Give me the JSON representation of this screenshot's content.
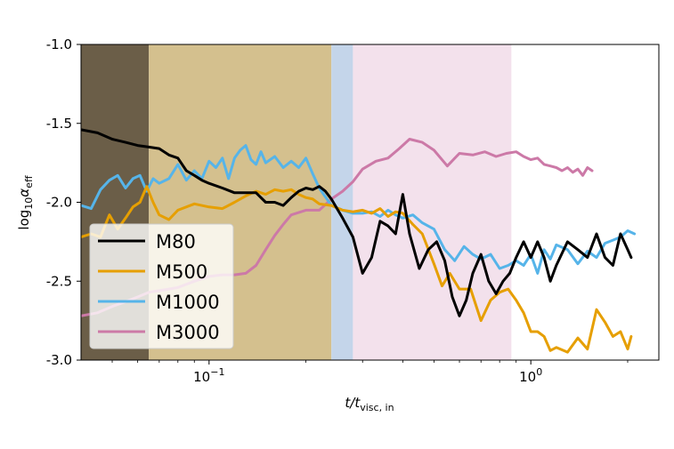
{
  "chart_data": {
    "type": "line",
    "xlabel_main": "t/t",
    "xlabel_sub": "visc, in",
    "ylabel_main": "log",
    "ylabel_sub1": "10",
    "ylabel_alpha": "α",
    "ylabel_sub2": "eff",
    "xscale": "log",
    "xlim": [
      0.04,
      2.5
    ],
    "ylim": [
      -3.0,
      -1.0
    ],
    "yticks": [
      {
        "value": -1.0,
        "label": "-1.0"
      },
      {
        "value": -1.5,
        "label": "-1.5"
      },
      {
        "value": -2.0,
        "label": "-2.0"
      },
      {
        "value": -2.5,
        "label": "-2.5"
      },
      {
        "value": -3.0,
        "label": "-3.0"
      }
    ],
    "xticks": [
      {
        "value": 0.1,
        "base": "10",
        "exp": "−1"
      },
      {
        "value": 1.0,
        "base": "10",
        "exp": "0"
      }
    ],
    "shaded_regions": [
      {
        "from": 0.04,
        "to": 0.065,
        "color": "#6b5e48",
        "opacity": 1.0
      },
      {
        "from": 0.065,
        "to": 0.24,
        "color": "#d4c08e",
        "opacity": 1.0
      },
      {
        "from": 0.24,
        "to": 0.28,
        "color": "#c4d5ea",
        "opacity": 1.0
      },
      {
        "from": 0.28,
        "to": 0.87,
        "color": "#f3e1ec",
        "opacity": 1.0
      }
    ],
    "legend_position": "lower-left",
    "series": [
      {
        "name": "M3000",
        "color": "#cc79a7",
        "x": [
          0.04,
          0.045,
          0.05,
          0.055,
          0.06,
          0.065,
          0.07,
          0.075,
          0.08,
          0.09,
          0.1,
          0.11,
          0.12,
          0.13,
          0.14,
          0.15,
          0.16,
          0.17,
          0.18,
          0.2,
          0.22,
          0.24,
          0.26,
          0.28,
          0.3,
          0.33,
          0.36,
          0.39,
          0.42,
          0.46,
          0.5,
          0.55,
          0.6,
          0.66,
          0.72,
          0.78,
          0.84,
          0.9,
          0.95,
          1.0,
          1.05,
          1.1,
          1.15,
          1.2,
          1.25,
          1.3,
          1.35,
          1.4,
          1.45,
          1.5,
          1.55
        ],
        "y": [
          -2.72,
          -2.7,
          -2.66,
          -2.63,
          -2.6,
          -2.57,
          -2.56,
          -2.55,
          -2.54,
          -2.5,
          -2.47,
          -2.46,
          -2.46,
          -2.45,
          -2.4,
          -2.3,
          -2.21,
          -2.14,
          -2.08,
          -2.05,
          -2.05,
          -1.98,
          -1.93,
          -1.87,
          -1.79,
          -1.74,
          -1.72,
          -1.66,
          -1.6,
          -1.62,
          -1.67,
          -1.77,
          -1.69,
          -1.7,
          -1.68,
          -1.71,
          -1.69,
          -1.68,
          -1.71,
          -1.73,
          -1.72,
          -1.76,
          -1.77,
          -1.78,
          -1.8,
          -1.78,
          -1.81,
          -1.79,
          -1.83,
          -1.78,
          -1.8
        ]
      },
      {
        "name": "M1000",
        "color": "#56b4e9",
        "x": [
          0.04,
          0.043,
          0.046,
          0.049,
          0.052,
          0.055,
          0.058,
          0.061,
          0.064,
          0.067,
          0.07,
          0.075,
          0.08,
          0.085,
          0.09,
          0.095,
          0.1,
          0.105,
          0.11,
          0.115,
          0.12,
          0.125,
          0.13,
          0.135,
          0.14,
          0.145,
          0.15,
          0.16,
          0.17,
          0.18,
          0.19,
          0.2,
          0.21,
          0.22,
          0.24,
          0.26,
          0.28,
          0.3,
          0.32,
          0.34,
          0.36,
          0.38,
          0.4,
          0.43,
          0.46,
          0.5,
          0.54,
          0.58,
          0.62,
          0.66,
          0.7,
          0.75,
          0.8,
          0.85,
          0.9,
          0.95,
          1.0,
          1.05,
          1.1,
          1.15,
          1.2,
          1.3,
          1.4,
          1.5,
          1.6,
          1.7,
          1.8,
          1.9,
          2.0,
          2.1
        ],
        "y": [
          -2.02,
          -2.04,
          -1.92,
          -1.86,
          -1.83,
          -1.91,
          -1.85,
          -1.83,
          -1.93,
          -1.85,
          -1.88,
          -1.85,
          -1.76,
          -1.86,
          -1.8,
          -1.85,
          -1.74,
          -1.78,
          -1.72,
          -1.85,
          -1.72,
          -1.67,
          -1.64,
          -1.73,
          -1.76,
          -1.68,
          -1.75,
          -1.71,
          -1.78,
          -1.74,
          -1.78,
          -1.72,
          -1.82,
          -1.91,
          -2.02,
          -2.05,
          -2.07,
          -2.07,
          -2.06,
          -2.09,
          -2.05,
          -2.08,
          -2.1,
          -2.08,
          -2.13,
          -2.17,
          -2.3,
          -2.37,
          -2.28,
          -2.33,
          -2.36,
          -2.33,
          -2.42,
          -2.4,
          -2.37,
          -2.4,
          -2.33,
          -2.45,
          -2.3,
          -2.36,
          -2.27,
          -2.3,
          -2.39,
          -2.31,
          -2.35,
          -2.26,
          -2.24,
          -2.22,
          -2.18,
          -2.2
        ]
      },
      {
        "name": "M500",
        "color": "#e69f00",
        "x": [
          0.04,
          0.043,
          0.046,
          0.049,
          0.052,
          0.055,
          0.058,
          0.061,
          0.064,
          0.067,
          0.07,
          0.075,
          0.08,
          0.09,
          0.1,
          0.11,
          0.12,
          0.13,
          0.14,
          0.15,
          0.16,
          0.17,
          0.18,
          0.19,
          0.2,
          0.21,
          0.22,
          0.24,
          0.26,
          0.28,
          0.3,
          0.32,
          0.34,
          0.36,
          0.38,
          0.4,
          0.43,
          0.46,
          0.5,
          0.53,
          0.56,
          0.6,
          0.65,
          0.7,
          0.75,
          0.8,
          0.85,
          0.9,
          0.95,
          1.0,
          1.05,
          1.1,
          1.15,
          1.2,
          1.3,
          1.4,
          1.5,
          1.6,
          1.7,
          1.8,
          1.9,
          2.0,
          2.05
        ],
        "y": [
          -2.22,
          -2.2,
          -2.22,
          -2.08,
          -2.17,
          -2.1,
          -2.03,
          -2.0,
          -1.9,
          -2.0,
          -2.08,
          -2.11,
          -2.05,
          -2.01,
          -2.03,
          -2.04,
          -2.0,
          -1.96,
          -1.93,
          -1.95,
          -1.92,
          -1.93,
          -1.92,
          -1.95,
          -1.97,
          -1.98,
          -2.01,
          -2.02,
          -2.05,
          -2.06,
          -2.05,
          -2.07,
          -2.04,
          -2.09,
          -2.06,
          -2.07,
          -2.14,
          -2.2,
          -2.39,
          -2.53,
          -2.45,
          -2.55,
          -2.55,
          -2.75,
          -2.62,
          -2.57,
          -2.55,
          -2.62,
          -2.7,
          -2.82,
          -2.82,
          -2.85,
          -2.94,
          -2.92,
          -2.95,
          -2.86,
          -2.93,
          -2.68,
          -2.76,
          -2.85,
          -2.82,
          -2.93,
          -2.85
        ]
      },
      {
        "name": "M80",
        "color": "#000000",
        "x": [
          0.04,
          0.045,
          0.05,
          0.055,
          0.06,
          0.065,
          0.07,
          0.075,
          0.08,
          0.085,
          0.09,
          0.095,
          0.1,
          0.11,
          0.12,
          0.13,
          0.14,
          0.15,
          0.16,
          0.17,
          0.18,
          0.19,
          0.2,
          0.21,
          0.22,
          0.23,
          0.24,
          0.26,
          0.28,
          0.3,
          0.32,
          0.34,
          0.36,
          0.38,
          0.4,
          0.42,
          0.45,
          0.48,
          0.51,
          0.54,
          0.57,
          0.6,
          0.63,
          0.66,
          0.7,
          0.74,
          0.78,
          0.82,
          0.86,
          0.9,
          0.95,
          1.0,
          1.05,
          1.1,
          1.15,
          1.2,
          1.3,
          1.4,
          1.5,
          1.6,
          1.7,
          1.8,
          1.9,
          2.0,
          2.05
        ],
        "y": [
          -1.54,
          -1.56,
          -1.6,
          -1.62,
          -1.64,
          -1.65,
          -1.66,
          -1.7,
          -1.72,
          -1.8,
          -1.83,
          -1.86,
          -1.88,
          -1.91,
          -1.94,
          -1.94,
          -1.94,
          -2.0,
          -2.0,
          -2.02,
          -1.97,
          -1.93,
          -1.91,
          -1.92,
          -1.9,
          -1.93,
          -1.98,
          -2.1,
          -2.22,
          -2.45,
          -2.35,
          -2.12,
          -2.15,
          -2.2,
          -1.95,
          -2.2,
          -2.42,
          -2.3,
          -2.25,
          -2.37,
          -2.6,
          -2.72,
          -2.62,
          -2.45,
          -2.33,
          -2.5,
          -2.58,
          -2.5,
          -2.45,
          -2.35,
          -2.25,
          -2.35,
          -2.25,
          -2.35,
          -2.5,
          -2.4,
          -2.25,
          -2.3,
          -2.35,
          -2.2,
          -2.35,
          -2.4,
          -2.2,
          -2.3,
          -2.35
        ]
      }
    ],
    "legend": [
      {
        "label": "M80",
        "color": "#000000"
      },
      {
        "label": "M500",
        "color": "#e69f00"
      },
      {
        "label": "M1000",
        "color": "#56b4e9"
      },
      {
        "label": "M3000",
        "color": "#cc79a7"
      }
    ]
  }
}
